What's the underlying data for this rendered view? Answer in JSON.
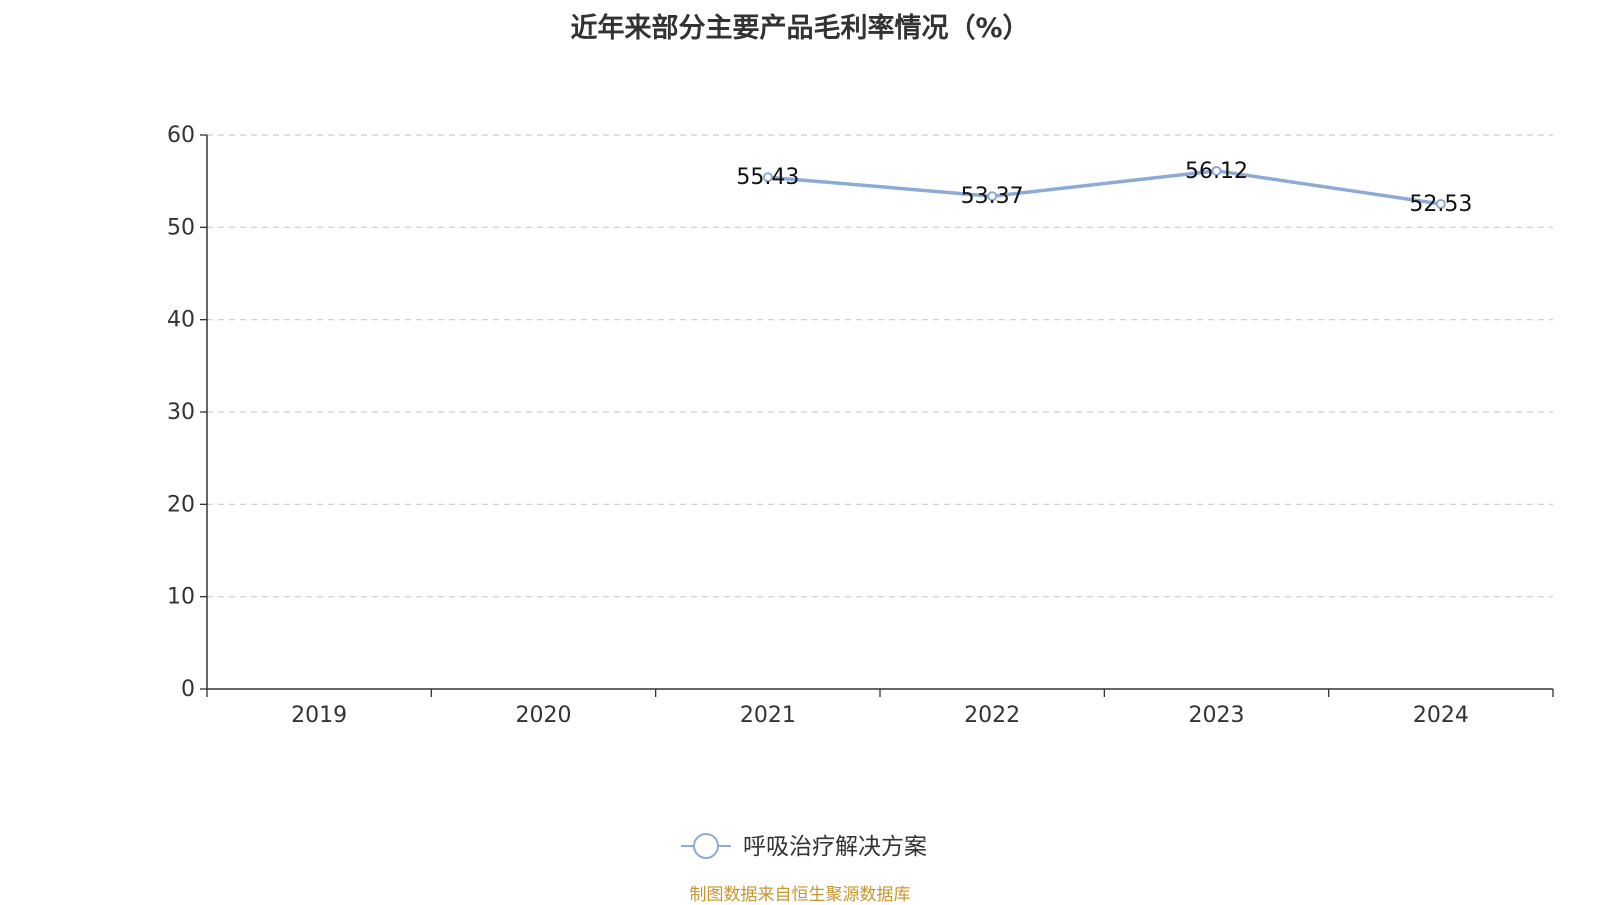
{
  "chart_data": {
    "type": "line",
    "title": "近年来部分主要产品毛利率情况（%）",
    "categories": [
      "2019",
      "2020",
      "2021",
      "2022",
      "2023",
      "2024"
    ],
    "series": [
      {
        "name": "呼吸治疗解决方案",
        "values": [
          null,
          null,
          55.43,
          53.37,
          56.12,
          52.53
        ],
        "labels": [
          "",
          "",
          "55.43",
          "53.37",
          "56.12",
          "52.53"
        ],
        "color": "#8eaad6"
      }
    ],
    "ylim": [
      0,
      60
    ],
    "yticks": [
      0,
      10,
      20,
      30,
      40,
      50,
      60
    ],
    "ytick_labels": [
      "0",
      "10",
      "20",
      "30",
      "40",
      "50",
      "60"
    ],
    "grid": true,
    "legend_position": "bottom-center",
    "xlabel": "",
    "ylabel": ""
  },
  "source_note": "制图数据来自恒生聚源数据库",
  "colors": {
    "title": "#333333",
    "axis": "#333333",
    "grid": "#cccccc",
    "source_note": "#c8962d"
  }
}
